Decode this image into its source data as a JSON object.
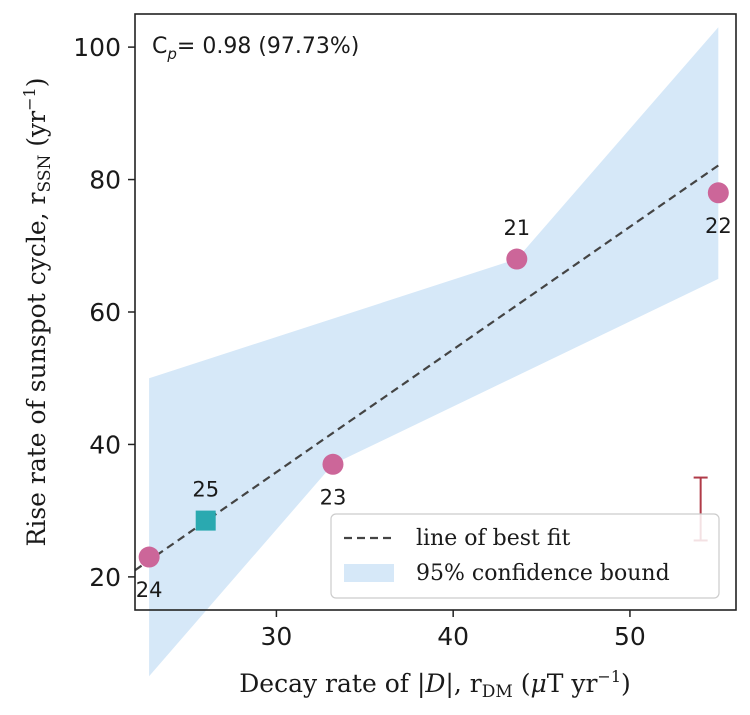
{
  "chart_data": {
    "type": "scatter",
    "annotation": {
      "prefix": "C",
      "sub": "p",
      "suffix": "= 0.98 (97.73%)"
    },
    "xlabel": {
      "pre": "Decay rate of |",
      "var": "D",
      "mid": "|, r",
      "sub": "DM",
      "unit_open": " (",
      "mu": "μ",
      "unit": "T yr",
      "sup": "−1",
      "unit_close": ")"
    },
    "ylabel": {
      "pre": "Rise rate of sunspot cycle, r",
      "sub": "SSN",
      "unit": " (yr",
      "sup": "−1",
      "close": ")"
    },
    "xlim": [
      22,
      56
    ],
    "ylim": [
      15,
      105
    ],
    "xticks": [
      30,
      40,
      50
    ],
    "yticks": [
      20,
      40,
      60,
      80,
      100
    ],
    "points": [
      {
        "label": "21",
        "x": 43.6,
        "y": 68,
        "marker": "circle",
        "color": "#cc6699",
        "label_pos": "above"
      },
      {
        "label": "22",
        "x": 55.0,
        "y": 78,
        "marker": "circle",
        "color": "#cc6699",
        "label_pos": "below"
      },
      {
        "label": "23",
        "x": 33.2,
        "y": 37,
        "marker": "circle",
        "color": "#cc6699",
        "label_pos": "below"
      },
      {
        "label": "24",
        "x": 22.8,
        "y": 23,
        "marker": "circle",
        "color": "#cc6699",
        "label_pos": "below"
      },
      {
        "label": "25",
        "x": 26.0,
        "y": 28.5,
        "marker": "square",
        "color": "#2aa9b0",
        "label_pos": "above"
      }
    ],
    "fit_line": {
      "x": [
        22.0,
        55.2
      ],
      "y": [
        21.0,
        82.5
      ],
      "label": "line of best fit",
      "color": "#444444"
    },
    "confidence_band": {
      "label": "95% confidence bound",
      "color": "#d6e8f8",
      "upper": [
        [
          22.8,
          50
        ],
        [
          43.6,
          68
        ],
        [
          55.0,
          103
        ]
      ],
      "lower": [
        [
          22.8,
          5
        ],
        [
          33.2,
          37
        ],
        [
          55.0,
          65
        ]
      ]
    },
    "error_bar": {
      "x": 54.0,
      "y_low": 25.5,
      "y_high": 35,
      "color": "#b03a48"
    },
    "legend": {
      "position": "lower right"
    }
  }
}
